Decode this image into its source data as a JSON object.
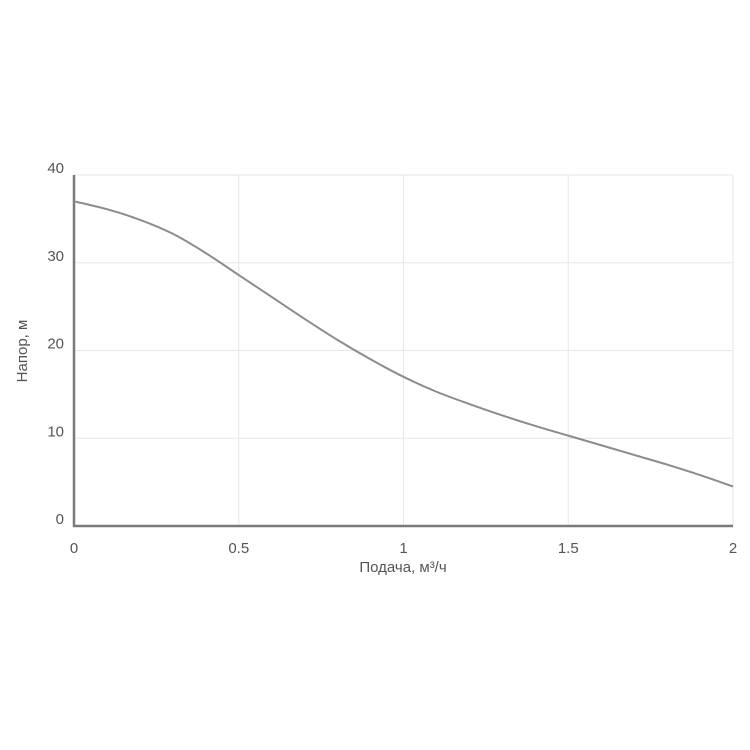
{
  "chart_data": {
    "type": "line",
    "title": "",
    "xlabel": "Подача, м³/ч",
    "ylabel": "Напор, м",
    "xlim": [
      0,
      2
    ],
    "ylim": [
      0,
      40
    ],
    "x_ticks": [
      "0",
      "0.5",
      "1",
      "1.5",
      "2"
    ],
    "y_ticks": [
      "0",
      "10",
      "20",
      "30",
      "40"
    ],
    "grid": true,
    "legend": "none",
    "colors": {
      "line": "#8c8c8c",
      "axis": "#7a7a7a",
      "grid": "#e6e6e6",
      "text": "#555555"
    },
    "series": [
      {
        "x": [
          0,
          0.1,
          0.2,
          0.3,
          0.4,
          0.5,
          0.6,
          0.7,
          0.8,
          0.9,
          1.0,
          1.1,
          1.2,
          1.3,
          1.4,
          1.5,
          1.6,
          1.7,
          1.8,
          1.9,
          2.0
        ],
        "values": [
          37.0,
          36.1,
          34.9,
          33.3,
          31.1,
          28.6,
          26.1,
          23.6,
          21.2,
          19.0,
          17.0,
          15.3,
          13.9,
          12.6,
          11.4,
          10.3,
          9.2,
          8.1,
          7.0,
          5.8,
          4.5
        ]
      }
    ]
  }
}
